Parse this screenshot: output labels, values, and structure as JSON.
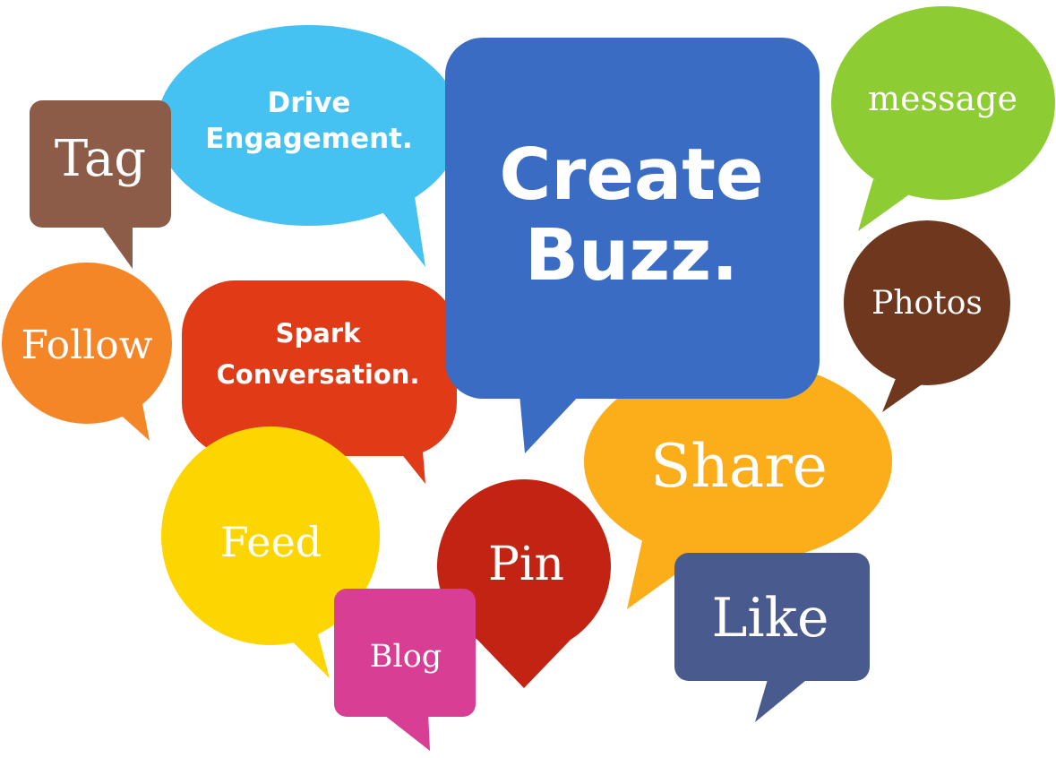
{
  "bubbles": {
    "drive": {
      "line1": "Drive",
      "line2": "Engagement.",
      "color": "#46C2F2"
    },
    "tag": {
      "text": "Tag",
      "color": "#8C5C49"
    },
    "create": {
      "line1": "Create",
      "line2": "Buzz.",
      "color": "#3B6CC4"
    },
    "message": {
      "text": "message",
      "color": "#8DCC33"
    },
    "follow": {
      "text": "Follow",
      "color": "#F58627"
    },
    "spark": {
      "line1": "Spark",
      "line2": "Conversation.",
      "color": "#E13A16"
    },
    "photos": {
      "text": "Photos",
      "color": "#6E371E"
    },
    "share": {
      "text": "Share",
      "color": "#FBAE1A"
    },
    "feed": {
      "text": "Feed",
      "color": "#FDD601"
    },
    "pin": {
      "text": "Pin",
      "color": "#C22313"
    },
    "like": {
      "text": "Like",
      "color": "#495A8E"
    },
    "blog": {
      "text": "Blog",
      "color": "#D83E93"
    }
  }
}
